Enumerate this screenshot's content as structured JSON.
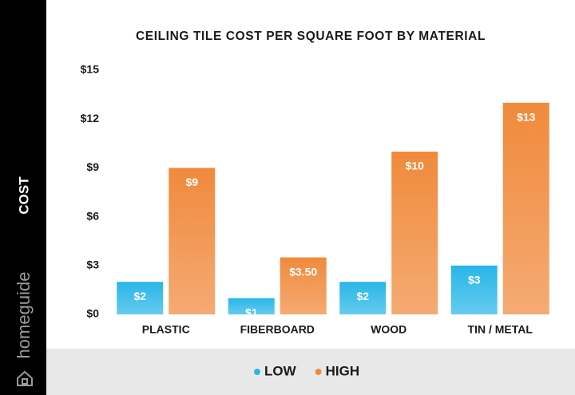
{
  "brand": "homeguide",
  "chart_data": {
    "type": "bar",
    "title": "CEILING TILE COST PER SQUARE FOOT BY MATERIAL",
    "y_label": "COST",
    "categories": [
      "PLASTIC",
      "FIBERBOARD",
      "WOOD",
      "TIN / METAL"
    ],
    "series": [
      {
        "name": "LOW",
        "color": "#29b6e8",
        "values": [
          2,
          1,
          2,
          3
        ],
        "value_labels": [
          "$2",
          "$1",
          "$2",
          "$3"
        ]
      },
      {
        "name": "HIGH",
        "color": "#f08a3c",
        "values": [
          9,
          3.5,
          10,
          13
        ],
        "value_labels": [
          "$9",
          "$3.50",
          "$10",
          "$13"
        ]
      }
    ],
    "ylim": [
      0,
      15
    ],
    "yticks": [
      {
        "value": 0,
        "label": "$0"
      },
      {
        "value": 3,
        "label": "$3"
      },
      {
        "value": 6,
        "label": "$6"
      },
      {
        "value": 9,
        "label": "$9"
      },
      {
        "value": 12,
        "label": "$12"
      },
      {
        "value": 15,
        "label": "$15"
      }
    ],
    "grid": false,
    "legend": "bottom"
  }
}
